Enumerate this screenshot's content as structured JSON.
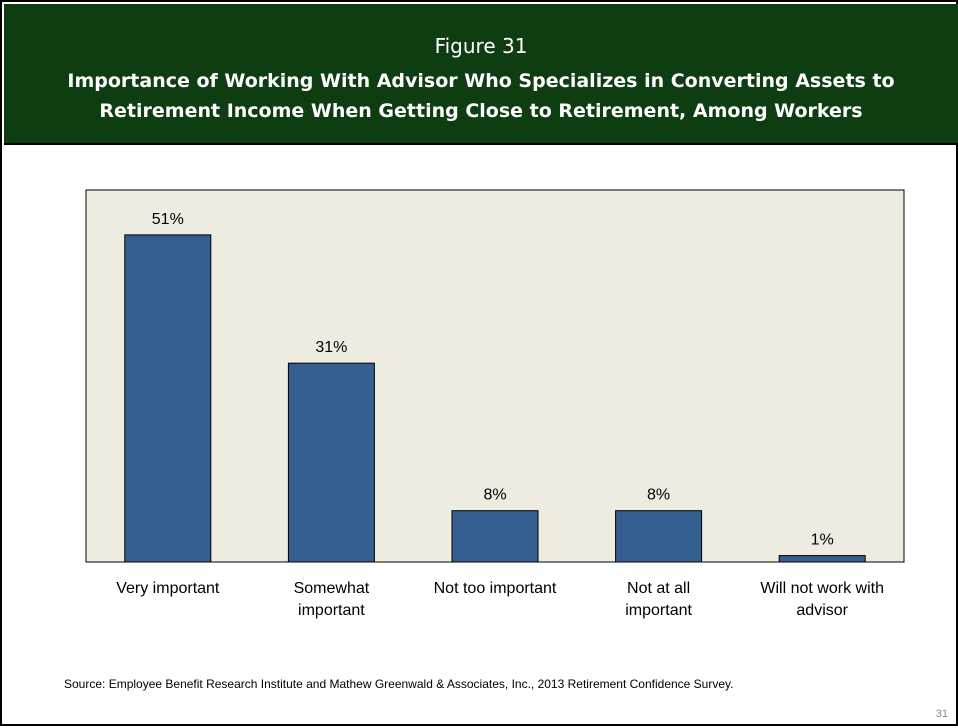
{
  "slide": {
    "figure_label": "Figure 31",
    "title": "Importance of Working With Advisor Who Specializes in Converting Assets to Retirement Income When Getting Close to Retirement, Among Workers",
    "source": "Source:  Employee Benefit Research Institute and Mathew Greenwald & Associates, Inc., 2013 Retirement Confidence Survey.",
    "page_number": "31"
  },
  "colors": {
    "header_bg": "#0f3d12",
    "plot_bg": "#eeece1",
    "bar_fill": "#365f91"
  },
  "chart_data": {
    "type": "bar",
    "title": "Importance of Working With Advisor Who Specializes in Converting Assets to Retirement Income When Getting Close to Retirement, Among Workers",
    "categories": [
      "Very important",
      "Somewhat important",
      "Not too important",
      "Not at all important",
      "Will not work with advisor"
    ],
    "category_lines": [
      [
        "Very important"
      ],
      [
        "Somewhat",
        "important"
      ],
      [
        "Not too important"
      ],
      [
        "Not at all",
        "important"
      ],
      [
        "Will not work with",
        "advisor"
      ]
    ],
    "values": [
      51,
      31,
      8,
      8,
      1
    ],
    "data_labels": [
      "51%",
      "31%",
      "8%",
      "8%",
      "1%"
    ],
    "unit": "%",
    "xlabel": "",
    "ylabel": "",
    "grid": false,
    "legend": "none"
  }
}
